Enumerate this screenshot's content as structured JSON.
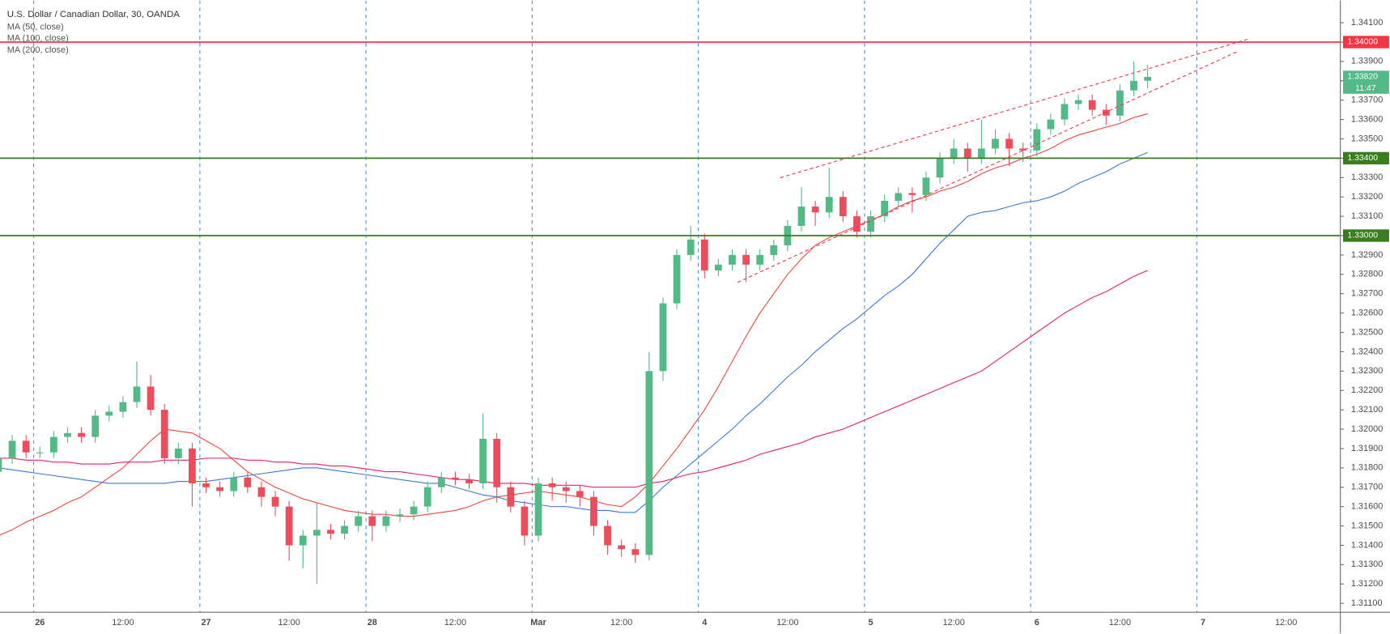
{
  "chart_data": {
    "type": "candlestick",
    "title": "U.S. Dollar / Canadian Dollar, 30, OANDA",
    "categories": [
      null,
      null,
      null,
      "26",
      null,
      null,
      null,
      null,
      null,
      "12:00",
      null,
      null,
      null,
      null,
      null,
      "27",
      null,
      null,
      null,
      null,
      null,
      "12:00",
      null,
      null,
      null,
      null,
      null,
      "28",
      null,
      null,
      null,
      null,
      null,
      "12:00",
      null,
      null,
      null,
      null,
      null,
      "Mar",
      null,
      null,
      null,
      null,
      null,
      "12:00",
      null,
      null,
      null,
      null,
      null,
      "4",
      null,
      null,
      null,
      null,
      null,
      "12:00",
      null,
      null,
      null,
      null,
      null,
      "5",
      null,
      null,
      null,
      null,
      null,
      "12:00",
      null,
      null,
      null,
      null,
      null,
      "6",
      null,
      null,
      null,
      null,
      null,
      "12:00",
      null,
      null,
      null,
      null,
      null,
      "7",
      null,
      null,
      null,
      null,
      null,
      "12:00",
      null,
      null
    ],
    "open": [
      1.3178,
      1.3185,
      1.3194,
      1.3188,
      1.3188,
      1.3196,
      1.3198,
      1.3196,
      1.3207,
      1.3209,
      1.3214,
      1.3222,
      1.321,
      1.3185,
      1.319,
      1.3172,
      1.317,
      1.3168,
      1.3175,
      1.317,
      1.3165,
      1.316,
      1.314,
      1.3145,
      1.3148,
      1.3146,
      1.315,
      1.3155,
      1.315,
      1.3155,
      1.3156,
      1.316,
      1.317,
      1.3175,
      1.3174,
      1.3172,
      1.3195,
      1.317,
      1.316,
      1.3145,
      1.3172,
      1.317,
      1.3168,
      1.3165,
      1.315,
      1.314,
      1.3138,
      1.3135,
      1.323,
      1.3265,
      1.329,
      1.3298,
      1.3282,
      1.3285,
      1.329,
      1.3285,
      1.329,
      1.3295,
      1.3305,
      1.3315,
      1.3312,
      1.332,
      1.331,
      1.3302,
      1.331,
      1.3318,
      1.3322,
      1.3321,
      1.333,
      1.334,
      1.3345,
      1.334,
      1.3345,
      1.335,
      1.3345,
      1.3344,
      1.3355,
      1.336,
      1.3368,
      1.337,
      1.3365,
      1.3362,
      1.3375,
      1.338,
      null,
      null,
      null,
      null,
      null,
      null,
      null,
      null,
      null,
      null,
      null,
      null
    ],
    "high": [
      1.319,
      1.3197,
      1.3197,
      1.3191,
      1.3199,
      1.3201,
      1.3201,
      1.321,
      1.3212,
      1.3217,
      1.3235,
      1.3228,
      1.3213,
      1.3193,
      1.3193,
      1.3175,
      1.3173,
      1.3178,
      1.3178,
      1.3173,
      1.3168,
      1.3163,
      1.3148,
      1.3162,
      1.3151,
      1.3153,
      1.3158,
      1.3158,
      1.3158,
      1.3159,
      1.3163,
      1.3173,
      1.3178,
      1.3178,
      1.3177,
      1.3208,
      1.3198,
      1.3173,
      1.3163,
      1.3175,
      1.3175,
      1.3173,
      1.3171,
      1.3168,
      1.3153,
      1.3143,
      1.3141,
      1.324,
      1.3268,
      1.3293,
      1.3305,
      1.3301,
      1.3288,
      1.3293,
      1.3293,
      1.3293,
      1.3298,
      1.3308,
      1.3325,
      1.3318,
      1.3335,
      1.3323,
      1.3313,
      1.3313,
      1.3321,
      1.3325,
      1.3325,
      1.3333,
      1.3343,
      1.335,
      1.3348,
      1.336,
      1.3355,
      1.3353,
      1.3348,
      1.3358,
      1.3363,
      1.3371,
      1.3373,
      1.3373,
      1.3368,
      1.3378,
      1.339,
      1.3388,
      null,
      null,
      null,
      null,
      null,
      null,
      null,
      null,
      null,
      null,
      null,
      null
    ],
    "low": [
      1.3173,
      1.3182,
      1.3185,
      1.3185,
      1.3185,
      1.3193,
      1.3193,
      1.3193,
      1.3204,
      1.3206,
      1.3211,
      1.3207,
      1.3182,
      1.3182,
      1.316,
      1.3167,
      1.3165,
      1.3165,
      1.3167,
      1.316,
      1.3155,
      1.3132,
      1.3128,
      1.312,
      1.3143,
      1.3143,
      1.3147,
      1.3142,
      1.3147,
      1.3152,
      1.3153,
      1.3157,
      1.3167,
      1.3171,
      1.3169,
      1.3169,
      1.3162,
      1.3157,
      1.314,
      1.3142,
      1.3163,
      1.3162,
      1.316,
      1.3145,
      1.3135,
      1.3134,
      1.3131,
      1.3132,
      1.3225,
      1.3262,
      1.3287,
      1.3278,
      1.3279,
      1.3282,
      1.3276,
      1.3282,
      1.3287,
      1.3292,
      1.3302,
      1.3305,
      1.3309,
      1.3307,
      1.3299,
      1.3299,
      1.3307,
      1.3315,
      1.3312,
      1.3318,
      1.3327,
      1.3337,
      1.3333,
      1.3337,
      1.3342,
      1.3336,
      1.3338,
      1.3341,
      1.3352,
      1.3357,
      1.3365,
      1.3362,
      1.3357,
      1.3359,
      1.3372,
      1.3376,
      null,
      null,
      null,
      null,
      null,
      null,
      null,
      null,
      null,
      null,
      null,
      null
    ],
    "close": [
      1.3185,
      1.3194,
      1.3188,
      1.3188,
      1.3196,
      1.3198,
      1.3196,
      1.3207,
      1.3209,
      1.3214,
      1.3222,
      1.321,
      1.3185,
      1.319,
      1.3172,
      1.317,
      1.3168,
      1.3175,
      1.317,
      1.3165,
      1.316,
      1.314,
      1.3145,
      1.3148,
      1.3146,
      1.315,
      1.3155,
      1.315,
      1.3155,
      1.3156,
      1.316,
      1.317,
      1.3175,
      1.3174,
      1.3172,
      1.3195,
      1.317,
      1.316,
      1.3145,
      1.3172,
      1.317,
      1.3168,
      1.3165,
      1.315,
      1.314,
      1.3138,
      1.3135,
      1.323,
      1.3265,
      1.329,
      1.3298,
      1.3282,
      1.3285,
      1.329,
      1.3285,
      1.329,
      1.3295,
      1.3305,
      1.3315,
      1.3312,
      1.332,
      1.331,
      1.3302,
      1.331,
      1.3318,
      1.3322,
      1.3321,
      1.333,
      1.334,
      1.3345,
      1.334,
      1.3345,
      1.335,
      1.3345,
      1.3344,
      1.3355,
      1.336,
      1.3368,
      1.337,
      1.3365,
      1.3362,
      1.3375,
      1.338,
      1.3382,
      null,
      null,
      null,
      null,
      null,
      null,
      null,
      null,
      null,
      null,
      null,
      null
    ],
    "up_color": "#53b987",
    "down_color": "#eb4d5c",
    "series": [
      {
        "name": "MA (50, close)",
        "color": "#f0453a",
        "values": [
          1.3145,
          1.3148,
          1.3152,
          1.3155,
          1.3158,
          1.3162,
          1.3165,
          1.317,
          1.3175,
          1.318,
          1.3187,
          1.3194,
          1.32,
          1.3199,
          1.3198,
          1.3194,
          1.319,
          1.3184,
          1.3178,
          1.3174,
          1.317,
          1.3167,
          1.3164,
          1.3162,
          1.316,
          1.3158,
          1.3157,
          1.3156,
          1.3156,
          1.3155,
          1.3155,
          1.3156,
          1.3157,
          1.3158,
          1.316,
          1.3163,
          1.3165,
          1.3166,
          1.3167,
          1.3168,
          1.3167,
          1.3166,
          1.3165,
          1.3163,
          1.3161,
          1.316,
          1.3165,
          1.3172,
          1.3181,
          1.319,
          1.32,
          1.321,
          1.3222,
          1.3235,
          1.3248,
          1.326,
          1.327,
          1.328,
          1.3288,
          1.3295,
          1.3299,
          1.3302,
          1.3305,
          1.3308,
          1.3311,
          1.3315,
          1.3318,
          1.332,
          1.3323,
          1.3325,
          1.3328,
          1.3332,
          1.3335,
          1.3337,
          1.334,
          1.3342,
          1.3345,
          1.3349,
          1.3352,
          1.3354,
          1.3356,
          1.3358,
          1.3361,
          1.3363,
          null,
          null,
          null,
          null,
          null,
          null,
          null,
          null,
          null,
          null,
          null,
          null
        ]
      },
      {
        "name": "MA (100, close)",
        "color": "#3c78d8",
        "values": [
          1.318,
          1.3179,
          1.3178,
          1.3177,
          1.3176,
          1.3175,
          1.3174,
          1.3173,
          1.3172,
          1.3172,
          1.3172,
          1.3172,
          1.3172,
          1.3173,
          1.3173,
          1.3173,
          1.3174,
          1.3175,
          1.3176,
          1.3177,
          1.3178,
          1.3179,
          1.318,
          1.318,
          1.3179,
          1.3178,
          1.3177,
          1.3176,
          1.3175,
          1.3174,
          1.3173,
          1.3172,
          1.3172,
          1.317,
          1.3168,
          1.3166,
          1.3165,
          1.3163,
          1.3162,
          1.3161,
          1.316,
          1.316,
          1.3159,
          1.3158,
          1.3158,
          1.3157,
          1.3157,
          1.3163,
          1.317,
          1.3176,
          1.3182,
          1.3188,
          1.3194,
          1.32,
          1.3207,
          1.3213,
          1.322,
          1.3227,
          1.3233,
          1.324,
          1.3246,
          1.3252,
          1.3257,
          1.3263,
          1.3269,
          1.3274,
          1.328,
          1.3288,
          1.3296,
          1.3303,
          1.331,
          1.3312,
          1.3313,
          1.3315,
          1.3317,
          1.3318,
          1.332,
          1.3323,
          1.3327,
          1.333,
          1.3333,
          1.3337,
          1.334,
          1.3343,
          null,
          null,
          null,
          null,
          null,
          null,
          null,
          null,
          null,
          null,
          null,
          null
        ]
      },
      {
        "name": "MA (200, close)",
        "color": "#e91e63",
        "values": [
          1.3185,
          1.3185,
          1.3184,
          1.3184,
          1.3183,
          1.3183,
          1.3182,
          1.3182,
          1.3182,
          1.3183,
          1.3183,
          1.3183,
          1.3184,
          1.3184,
          1.3184,
          1.3185,
          1.3185,
          1.3185,
          1.3184,
          1.3184,
          1.3183,
          1.3183,
          1.3182,
          1.3182,
          1.3181,
          1.3181,
          1.318,
          1.3179,
          1.3178,
          1.3178,
          1.3177,
          1.3176,
          1.3175,
          1.3174,
          1.3174,
          1.3173,
          1.3172,
          1.3172,
          1.3172,
          1.3171,
          1.3171,
          1.3171,
          1.3171,
          1.317,
          1.317,
          1.317,
          1.317,
          1.3172,
          1.3173,
          1.3175,
          1.3177,
          1.3178,
          1.318,
          1.3182,
          1.3184,
          1.3187,
          1.3189,
          1.3191,
          1.3193,
          1.3196,
          1.3198,
          1.32,
          1.3203,
          1.3206,
          1.3209,
          1.3212,
          1.3215,
          1.3218,
          1.3221,
          1.3224,
          1.3227,
          1.323,
          1.3235,
          1.324,
          1.3245,
          1.325,
          1.3255,
          1.326,
          1.3264,
          1.3268,
          1.3271,
          1.3275,
          1.3279,
          1.3282,
          null,
          null,
          null,
          null,
          null,
          null,
          null,
          null,
          null,
          null,
          null,
          null
        ]
      }
    ],
    "ylim": [
      1.31054,
      1.34215
    ],
    "yticks": [
      {
        "value": 1.311,
        "label": "1.31100"
      },
      {
        "value": 1.312,
        "label": "1.31200"
      },
      {
        "value": 1.313,
        "label": "1.31300"
      },
      {
        "value": 1.314,
        "label": "1.31400"
      },
      {
        "value": 1.315,
        "label": "1.31500"
      },
      {
        "value": 1.316,
        "label": "1.31600"
      },
      {
        "value": 1.317,
        "label": "1.31700"
      },
      {
        "value": 1.318,
        "label": "1.31800"
      },
      {
        "value": 1.319,
        "label": "1.31900"
      },
      {
        "value": 1.32,
        "label": "1.32000"
      },
      {
        "value": 1.321,
        "label": "1.32100"
      },
      {
        "value": 1.322,
        "label": "1.32200"
      },
      {
        "value": 1.323,
        "label": "1.32300"
      },
      {
        "value": 1.324,
        "label": "1.32400"
      },
      {
        "value": 1.325,
        "label": "1.32500"
      },
      {
        "value": 1.326,
        "label": "1.32600"
      },
      {
        "value": 1.327,
        "label": "1.32700"
      },
      {
        "value": 1.328,
        "label": "1.32800"
      },
      {
        "value": 1.329,
        "label": "1.32900"
      },
      {
        "value": 1.33,
        "label": "1.33000"
      },
      {
        "value": 1.331,
        "label": "1.33100"
      },
      {
        "value": 1.332,
        "label": "1.33200"
      },
      {
        "value": 1.333,
        "label": "1.33300"
      },
      {
        "value": 1.334,
        "label": "1.33400"
      },
      {
        "value": 1.335,
        "label": "1.33500"
      },
      {
        "value": 1.336,
        "label": "1.33600"
      },
      {
        "value": 1.337,
        "label": "1.33700"
      },
      {
        "value": 1.338,
        "label": "1.33800"
      },
      {
        "value": 1.339,
        "label": "1.33900"
      },
      {
        "value": 1.34,
        "label": "1.34000"
      },
      {
        "value": 1.341,
        "label": "1.34100"
      }
    ],
    "levels": [
      {
        "value": 1.34,
        "label": "1.34000",
        "color": "#f23645"
      },
      {
        "value": 1.334,
        "label": "1.33400",
        "color": "#3a7d1e"
      },
      {
        "value": 1.33,
        "label": "1.33000",
        "color": "#3a7d1e"
      }
    ],
    "last_price": {
      "value": 1.3382,
      "label": "1.33820",
      "countdown": "11:47"
    }
  }
}
